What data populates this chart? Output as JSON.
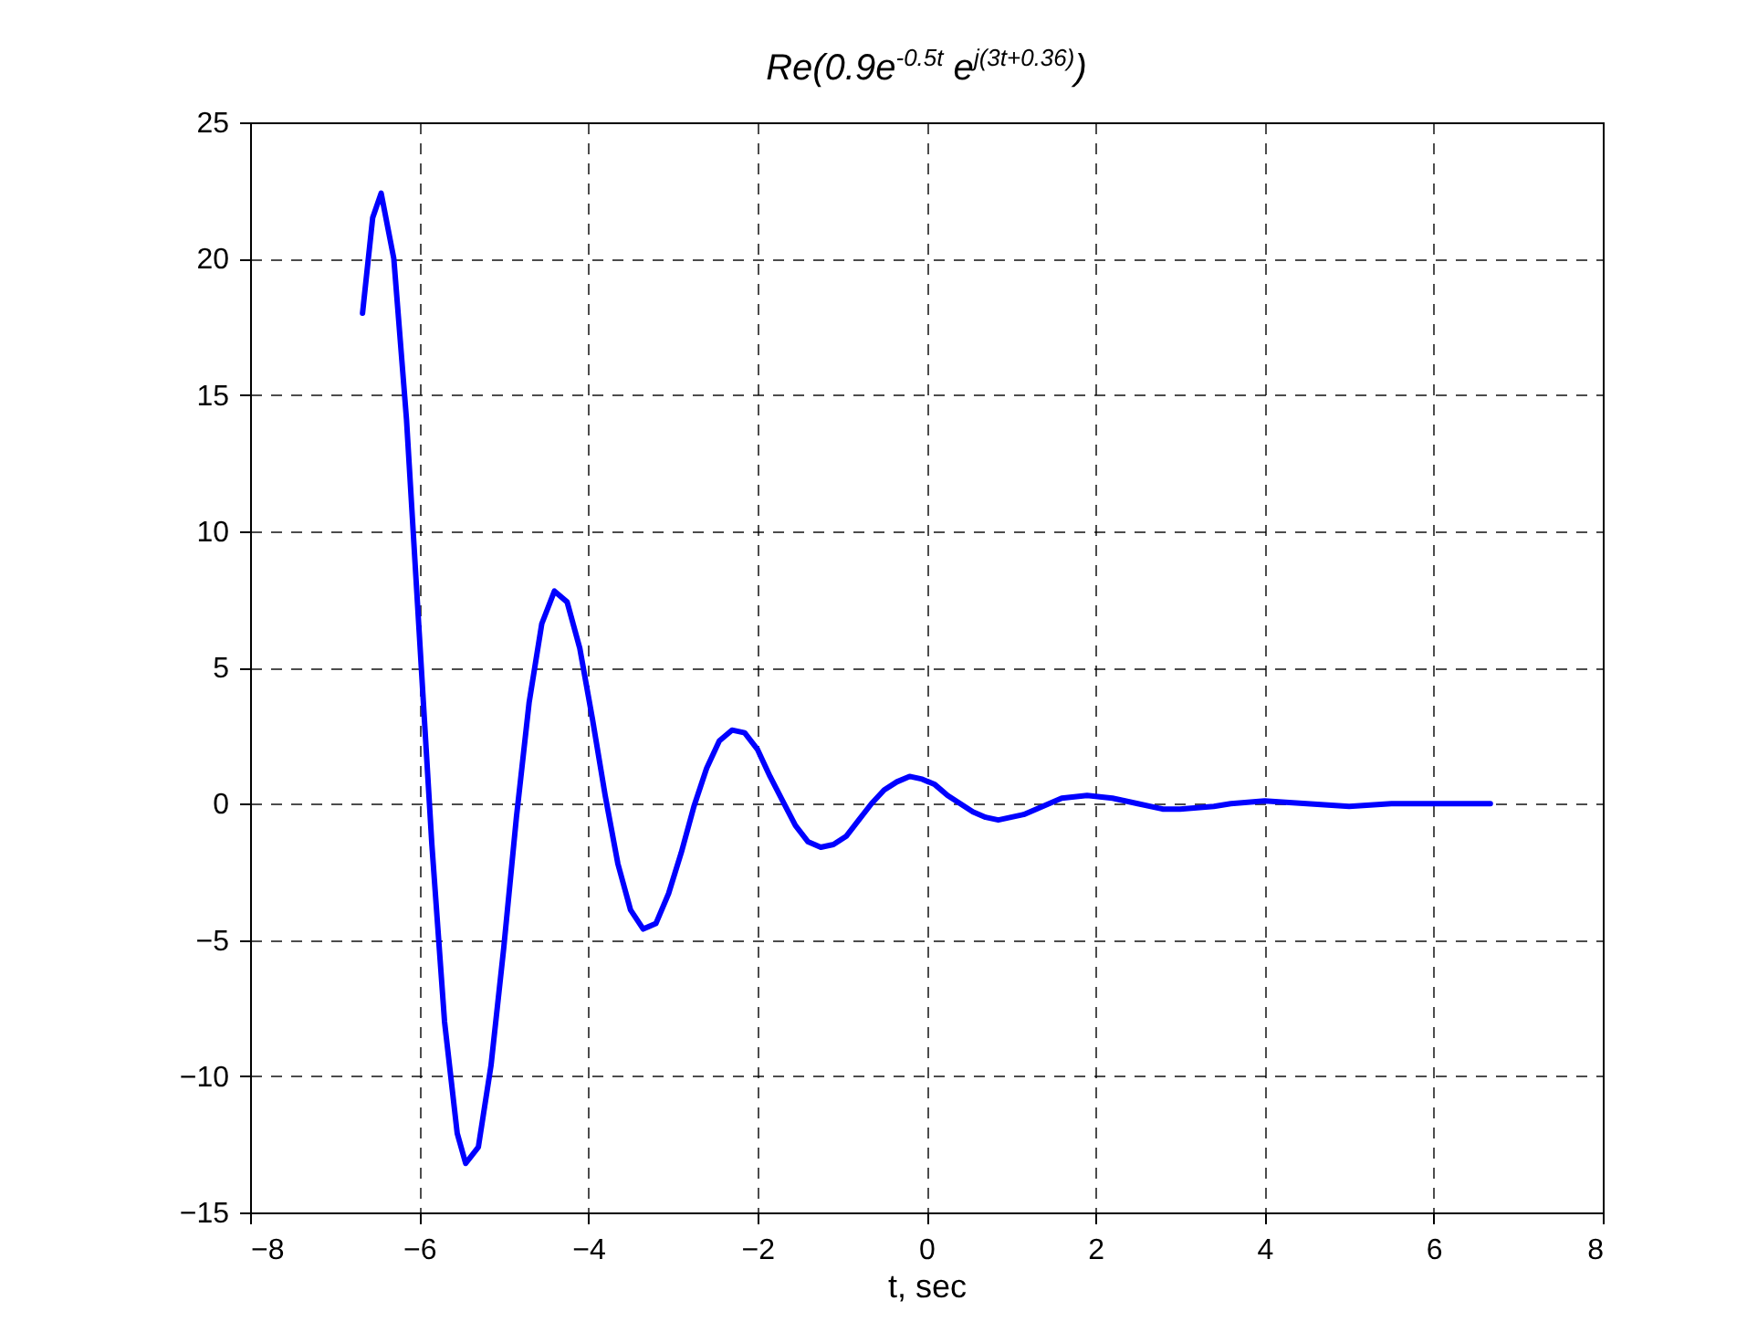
{
  "chart_data": {
    "type": "line",
    "title": "Re(0.9e$^{-0.5t}$ e$^{j(3t+0.36)}$)",
    "xlabel": "t, sec",
    "xlim": [
      -8,
      8
    ],
    "xticks": [
      -8,
      -6,
      -4,
      -2,
      0,
      2,
      4,
      6,
      8
    ],
    "ylim": [
      -15,
      25
    ],
    "yticks": [
      -15,
      -10,
      -5,
      0,
      5,
      10,
      15,
      20,
      25
    ],
    "grid": true,
    "line_style": "solid",
    "marker": "none",
    "series": [
      {
        "color": "#0000ff",
        "x": [
          -6.67,
          -6.55,
          -6.45,
          -6.3,
          -6.15,
          -6.0,
          -5.85,
          -5.7,
          -5.55,
          -5.45,
          -5.3,
          -5.15,
          -5.0,
          -4.85,
          -4.7,
          -4.55,
          -4.4,
          -4.25,
          -4.1,
          -3.95,
          -3.8,
          -3.65,
          -3.5,
          -3.35,
          -3.2,
          -3.05,
          -2.9,
          -2.75,
          -2.6,
          -2.45,
          -2.3,
          -2.15,
          -2.0,
          -1.85,
          -1.7,
          -1.55,
          -1.4,
          -1.25,
          -1.1,
          -0.95,
          -0.8,
          -0.65,
          -0.5,
          -0.35,
          -0.2,
          -0.05,
          0.1,
          0.25,
          0.4,
          0.55,
          0.7,
          0.85,
          1.0,
          1.15,
          1.3,
          1.45,
          1.6,
          1.9,
          2.2,
          2.5,
          2.8,
          3.0,
          3.4,
          3.6,
          4.0,
          4.5,
          5.0,
          5.5,
          6.0,
          6.67
        ],
        "values": [
          18,
          21.5,
          22.4,
          20.0,
          14.1,
          6.3,
          -1.5,
          -8.0,
          -12.1,
          -13.2,
          -12.6,
          -9.6,
          -5.3,
          -0.5,
          3.7,
          6.6,
          7.8,
          7.4,
          5.7,
          3.1,
          0.3,
          -2.2,
          -3.9,
          -4.6,
          -4.4,
          -3.3,
          -1.8,
          -0.1,
          1.3,
          2.3,
          2.7,
          2.6,
          2.0,
          1.0,
          0.1,
          -0.8,
          -1.4,
          -1.6,
          -1.5,
          -1.2,
          -0.6,
          0.0,
          0.5,
          0.8,
          1.0,
          0.9,
          0.7,
          0.3,
          0.0,
          -0.3,
          -0.5,
          -0.6,
          -0.5,
          -0.4,
          -0.2,
          0.0,
          0.2,
          0.3,
          0.2,
          0.0,
          -0.2,
          -0.2,
          -0.1,
          0.0,
          0.1,
          0.0,
          -0.1,
          0.0,
          0.0,
          0.0
        ]
      }
    ]
  }
}
